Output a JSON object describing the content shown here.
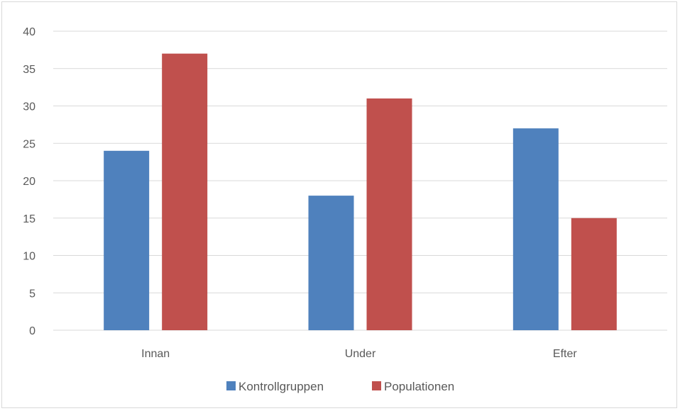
{
  "chart_data": {
    "type": "bar",
    "categories": [
      "Innan",
      "Under",
      "Efter"
    ],
    "series": [
      {
        "name": "Kontrollgruppen",
        "values": [
          24,
          18,
          27
        ],
        "color": "#4f81bd"
      },
      {
        "name": "Populationen",
        "values": [
          37,
          31,
          15
        ],
        "color": "#c0504d"
      }
    ],
    "ylim": [
      0,
      40
    ],
    "yticks": [
      0,
      5,
      10,
      15,
      20,
      25,
      30,
      35,
      40
    ],
    "grid": true,
    "legend_position": "bottom"
  }
}
